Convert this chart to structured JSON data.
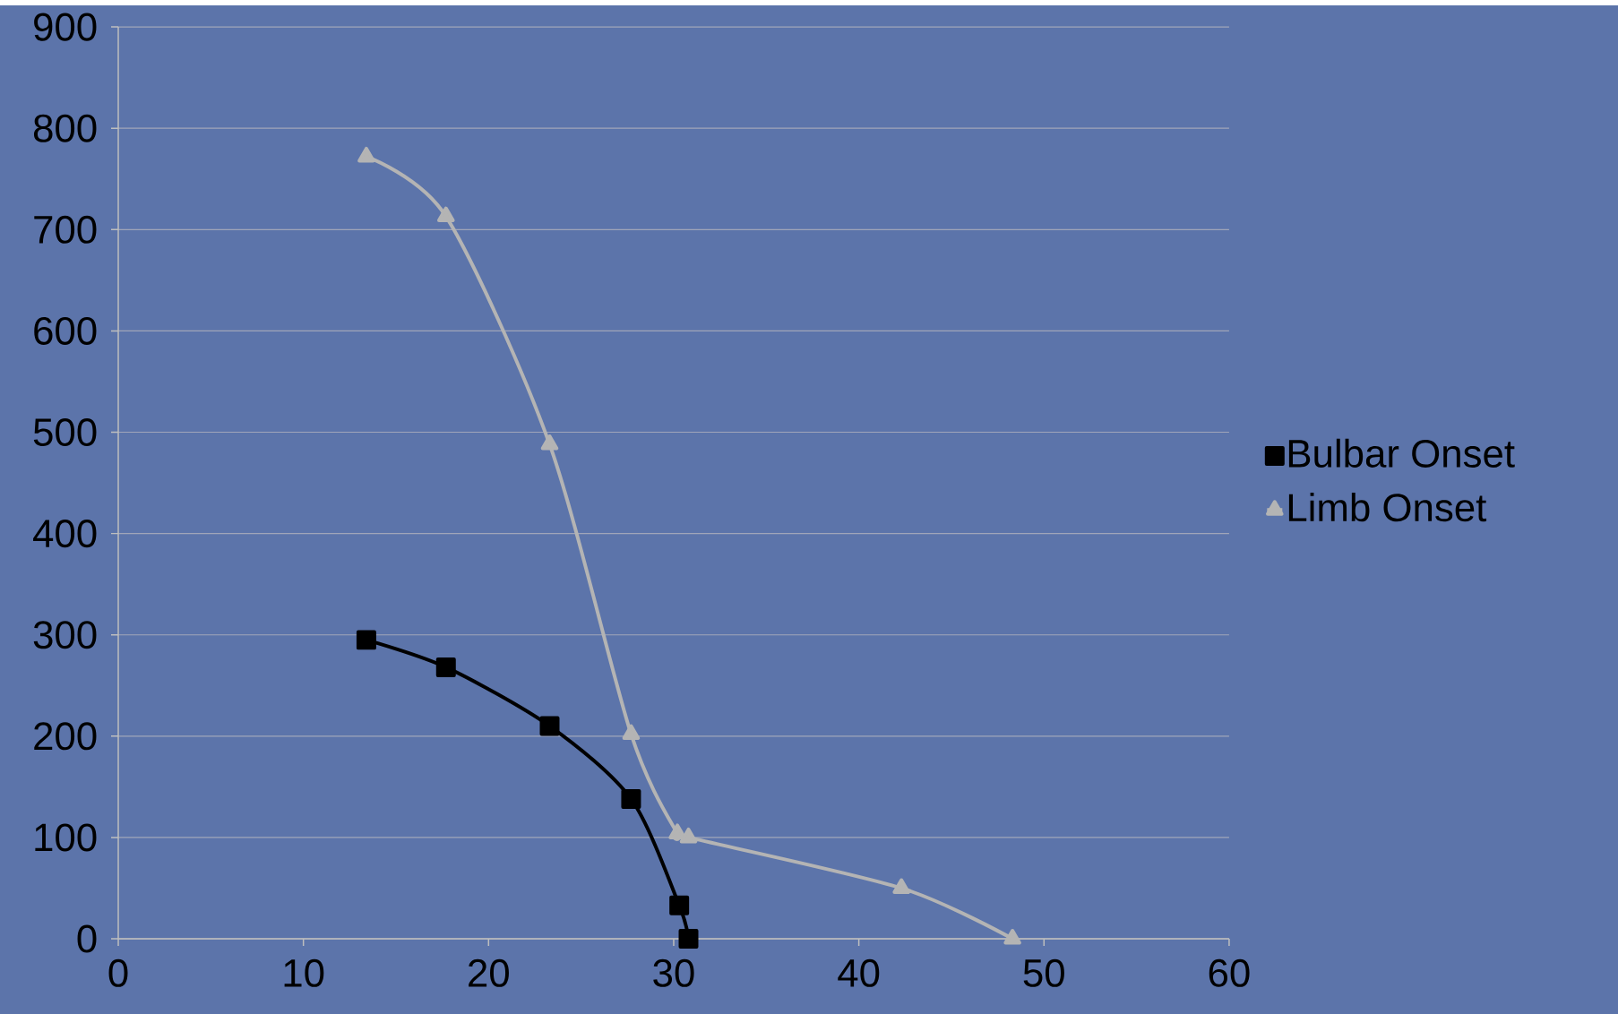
{
  "chart_data": {
    "type": "line",
    "xlim": [
      0,
      60
    ],
    "xticks": [
      0,
      10,
      20,
      30,
      40,
      50,
      60
    ],
    "ylim": [
      0,
      900
    ],
    "yticks": [
      0,
      100,
      200,
      300,
      400,
      500,
      600,
      700,
      800,
      900
    ],
    "grid": "y",
    "legend": "right",
    "series": [
      {
        "name": "Bulbar Onset",
        "color": "#000000",
        "marker": "square",
        "x": [
          13.4,
          17.7,
          23.3,
          27.7,
          30.3,
          30.8
        ],
        "values": [
          295,
          268,
          210,
          138,
          33,
          0
        ]
      },
      {
        "name": "Limb Onset",
        "color": "#b4b4b4",
        "marker": "triangle",
        "x": [
          13.4,
          17.7,
          23.3,
          27.7,
          30.2,
          30.8,
          42.3,
          48.3
        ],
        "values": [
          772,
          713,
          488,
          202,
          104,
          100,
          50,
          0
        ]
      }
    ]
  }
}
